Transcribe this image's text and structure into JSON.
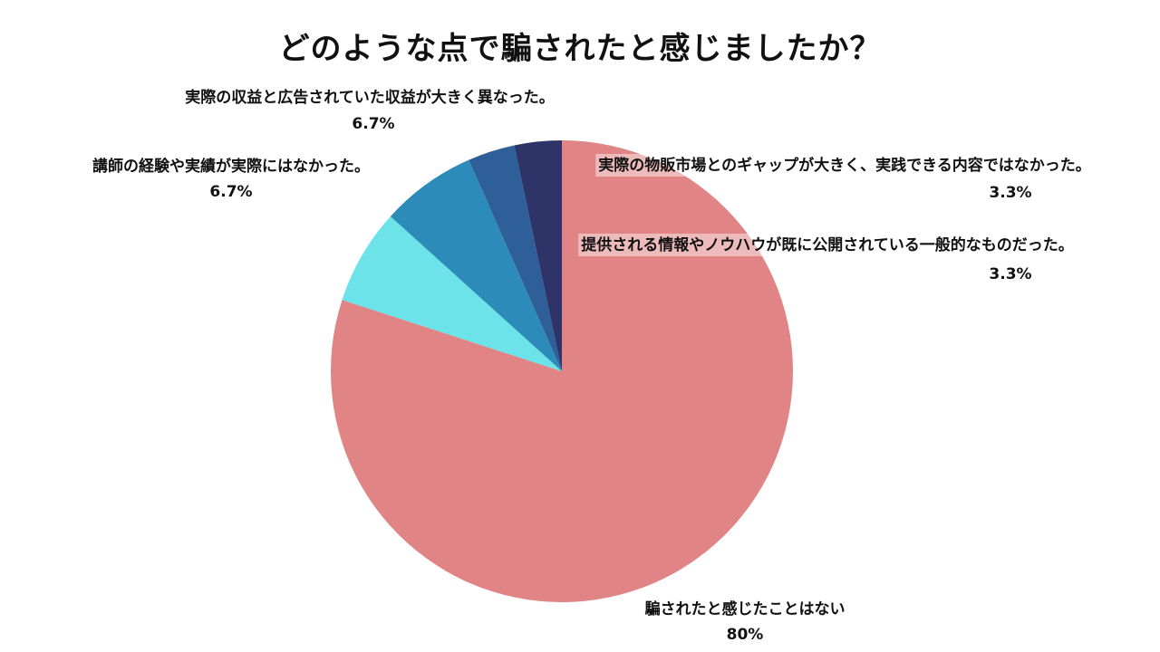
{
  "chart_data": {
    "type": "pie",
    "title": "どのような点で騙されたと感じましたか？",
    "start": "12 o'clock",
    "direction": "clockwise",
    "slices": [
      {
        "label": "騙されたと感じたことはない",
        "value": 80,
        "display": "80%",
        "color": "#e08485"
      },
      {
        "label": "講師の経験や実績が実際にはなかった。",
        "value": 6.7,
        "display": "6.7%",
        "color": "#6be3e8"
      },
      {
        "label": "実際の収益と広告されていた収益が大きく異なった。",
        "value": 6.7,
        "display": "6.7%",
        "color": "#2c8bb9"
      },
      {
        "label": "提供される情報やノウハウが既に公開されている一般的なものだった。",
        "value": 3.3,
        "display": "3.3%",
        "color": "#2e5f98"
      },
      {
        "label": "実際の物販市場とのギャップが大きく、実践できる内容ではなかった。",
        "value": 3.3,
        "display": "3.3%",
        "color": "#2e3368"
      }
    ]
  }
}
